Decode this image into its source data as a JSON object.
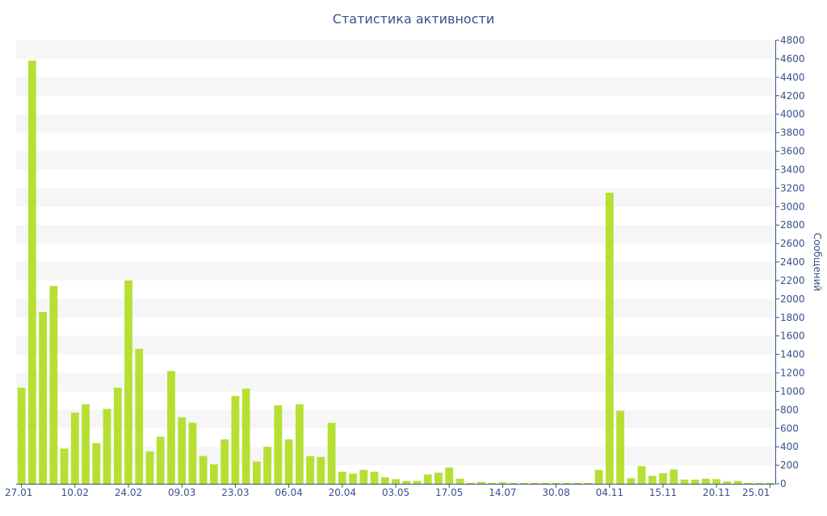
{
  "chart_data": {
    "type": "bar",
    "title": "Статистика активности",
    "xlabel": "",
    "ylabel": "Сообщений",
    "ylim": [
      0,
      4800
    ],
    "y_ticks": [
      0,
      200,
      400,
      600,
      800,
      1000,
      1200,
      1400,
      1600,
      1800,
      2000,
      2200,
      2400,
      2600,
      2800,
      3000,
      3200,
      3400,
      3600,
      3800,
      4000,
      4200,
      4400,
      4600,
      4800
    ],
    "x_tick_labels": [
      {
        "label": "27.01",
        "index": 0
      },
      {
        "label": "10.02",
        "index": 5
      },
      {
        "label": "24.02",
        "index": 10
      },
      {
        "label": "09.03",
        "index": 15
      },
      {
        "label": "23.03",
        "index": 20
      },
      {
        "label": "06.04",
        "index": 25
      },
      {
        "label": "20.04",
        "index": 30
      },
      {
        "label": "03.05",
        "index": 35
      },
      {
        "label": "17.05",
        "index": 40
      },
      {
        "label": "14.07",
        "index": 45
      },
      {
        "label": "30.08",
        "index": 50
      },
      {
        "label": "04.11",
        "index": 55
      },
      {
        "label": "15.11",
        "index": 60
      },
      {
        "label": "20.11",
        "index": 65
      },
      {
        "label": "25.01",
        "index": 70
      }
    ],
    "values": [
      1040,
      4580,
      1860,
      2140,
      380,
      770,
      860,
      440,
      810,
      1040,
      2200,
      1460,
      350,
      510,
      1220,
      720,
      660,
      300,
      210,
      480,
      950,
      1030,
      240,
      400,
      850,
      480,
      860,
      300,
      290,
      660,
      130,
      110,
      150,
      130,
      70,
      50,
      30,
      30,
      100,
      120,
      175,
      55,
      10,
      20,
      10,
      15,
      10,
      10,
      10,
      10,
      10,
      10,
      10,
      10,
      150,
      3150,
      790,
      60,
      190,
      85,
      115,
      155,
      45,
      45,
      55,
      50,
      25,
      30,
      10,
      10,
      10
    ],
    "grid": true,
    "colors": {
      "bar": "#b5e033",
      "band": "#f6f6f6",
      "text": "#3a4f8c",
      "axis": "#3a4f8c"
    }
  }
}
